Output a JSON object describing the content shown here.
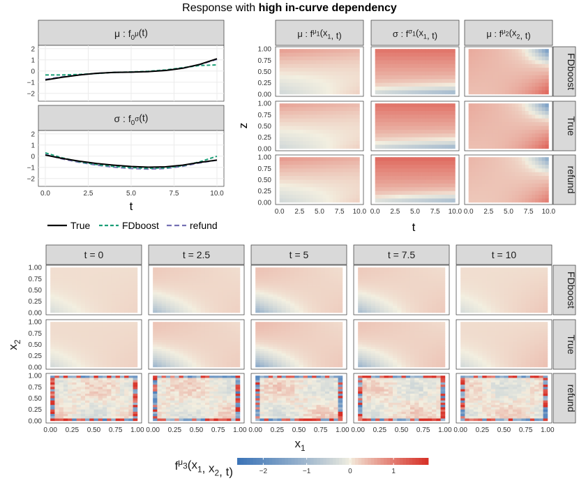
{
  "figure": {
    "title_prefix": "Response with ",
    "title_bold": "high in-curve dependency"
  },
  "colors": {
    "strip": "#d9d9d9",
    "panel_border": "#333333",
    "grid": "#ebebeb",
    "true_line": "#000000",
    "fdboost_line": "#1b9e77",
    "refund_line": "#7570b3",
    "low": "#3b74b8",
    "mid": "#f3efe0",
    "high": "#d73027"
  },
  "chart_data": [
    {
      "id": "intercepts",
      "type": "line",
      "xlabel": "t",
      "x_ticks": [
        "0.0",
        "2.5",
        "5.0",
        "7.5",
        "10.0"
      ],
      "xlim": [
        0,
        10
      ],
      "ylim": [
        -2.7,
        2.3
      ],
      "y_ticks": [
        "2",
        "1",
        "0",
        "−1",
        "−2"
      ],
      "legend": [
        "True",
        "FDboost",
        "refund"
      ],
      "panels": [
        {
          "strip": "μ :  f",
          "strip_sub": "0",
          "strip_sup": "μ",
          "strip_tail": "(t)",
          "series": [
            {
              "name": "True",
              "x": [
                0,
                1,
                2,
                3,
                4,
                5,
                6,
                7,
                8,
                9,
                10
              ],
              "values": [
                -0.8,
                -0.55,
                -0.35,
                -0.2,
                -0.12,
                -0.1,
                -0.05,
                0.05,
                0.25,
                0.6,
                1.1
              ]
            },
            {
              "name": "FDboost",
              "x": [
                0,
                1,
                2,
                3,
                4,
                5,
                6,
                7,
                8,
                9,
                10
              ],
              "values": [
                -0.35,
                -0.35,
                -0.3,
                -0.22,
                -0.12,
                -0.08,
                -0.02,
                0.1,
                0.3,
                0.5,
                0.55
              ]
            },
            {
              "name": "refund",
              "x": [
                0,
                1,
                2,
                3,
                4,
                5,
                6,
                7,
                8,
                9,
                10
              ],
              "values": [
                -0.75,
                -0.52,
                -0.34,
                -0.2,
                -0.12,
                -0.1,
                -0.05,
                0.06,
                0.25,
                0.58,
                1.05
              ]
            }
          ]
        },
        {
          "strip": "σ :  f",
          "strip_sub": "0",
          "strip_sup": "σ",
          "strip_tail": "(t)",
          "series": [
            {
              "name": "True",
              "x": [
                0,
                1,
                2,
                3,
                4,
                5,
                6,
                7,
                8,
                9,
                10
              ],
              "values": [
                0.1,
                -0.2,
                -0.45,
                -0.65,
                -0.8,
                -0.92,
                -0.98,
                -0.95,
                -0.8,
                -0.55,
                -0.35
              ]
            },
            {
              "name": "FDboost",
              "x": [
                0,
                1,
                2,
                3,
                4,
                5,
                6,
                7,
                8,
                9,
                10
              ],
              "values": [
                0.3,
                -0.15,
                -0.5,
                -0.75,
                -0.92,
                -1.02,
                -1.08,
                -1.05,
                -0.85,
                -0.5,
                0.0
              ]
            },
            {
              "name": "refund",
              "x": [
                0,
                1,
                2,
                3,
                4,
                5,
                6,
                7,
                8,
                9,
                10
              ],
              "values": [
                0.15,
                -0.25,
                -0.55,
                -0.8,
                -0.98,
                -1.1,
                -1.15,
                -1.1,
                -0.9,
                -0.6,
                -0.35
              ]
            }
          ]
        }
      ]
    },
    {
      "id": "coef-x1-x2",
      "type": "heatmap",
      "xlabel": "t",
      "ylabel": "z",
      "x_ticks": [
        "0.0",
        "2.5",
        "5.0",
        "7.5",
        "10.0"
      ],
      "y_ticks": [
        "1.00",
        "0.75",
        "0.50",
        "0.25",
        "0.00"
      ],
      "xlim": [
        0,
        10
      ],
      "ylim": [
        0,
        1
      ],
      "columns": [
        {
          "prefix": "μ :  f",
          "sup": "μ",
          "sub": "1",
          "tail": "(x",
          "tsub": "1",
          "end": ", t)",
          "kind": "mu1"
        },
        {
          "prefix": "σ :  f",
          "sup": "σ",
          "sub": "1",
          "tail": "(x",
          "tsub": "1",
          "end": ", t)",
          "kind": "sigma1"
        },
        {
          "prefix": "μ :  f",
          "sup": "μ",
          "sub": "2",
          "tail": "(x",
          "tsub": "2",
          "end": ", t)",
          "kind": "mu2"
        }
      ],
      "rows": [
        {
          "label": "FDboost",
          "key": "fdboost"
        },
        {
          "label": "True",
          "key": "true"
        },
        {
          "label": "refund",
          "key": "refund"
        }
      ]
    },
    {
      "id": "coef-x1x2",
      "type": "heatmap",
      "xlabel": "x",
      "xlabel_sub": "1",
      "ylabel": "x",
      "ylabel_sub": "2",
      "x_ticks": [
        "0.00",
        "0.25",
        "0.50",
        "0.75",
        "1.00"
      ],
      "y_ticks": [
        "1.00",
        "0.75",
        "0.50",
        "0.25",
        "0.00"
      ],
      "xlim": [
        0,
        1
      ],
      "ylim": [
        0,
        1
      ],
      "columns": [
        {
          "label": "t = 0",
          "t": 0
        },
        {
          "label": "t = 2.5",
          "t": 2.5
        },
        {
          "label": "t = 5",
          "t": 5
        },
        {
          "label": "t = 7.5",
          "t": 7.5
        },
        {
          "label": "t = 10",
          "t": 10
        }
      ],
      "rows": [
        {
          "label": "FDboost",
          "key": "fdboost"
        },
        {
          "label": "True",
          "key": "true"
        },
        {
          "label": "refund",
          "key": "refund"
        }
      ],
      "colorbar": {
        "title_main": "f",
        "title_sup": "μ",
        "title_sub": "3",
        "title_tail": "(x",
        "title_x1": "1",
        "title_mid": ", x",
        "title_x2": "2",
        "title_end": ", t)",
        "range": [
          -2.6,
          1.8
        ],
        "ticks": [
          -2,
          -1,
          0,
          1
        ],
        "tick_labels": [
          "−2",
          "−1",
          "0",
          "1"
        ]
      }
    }
  ]
}
